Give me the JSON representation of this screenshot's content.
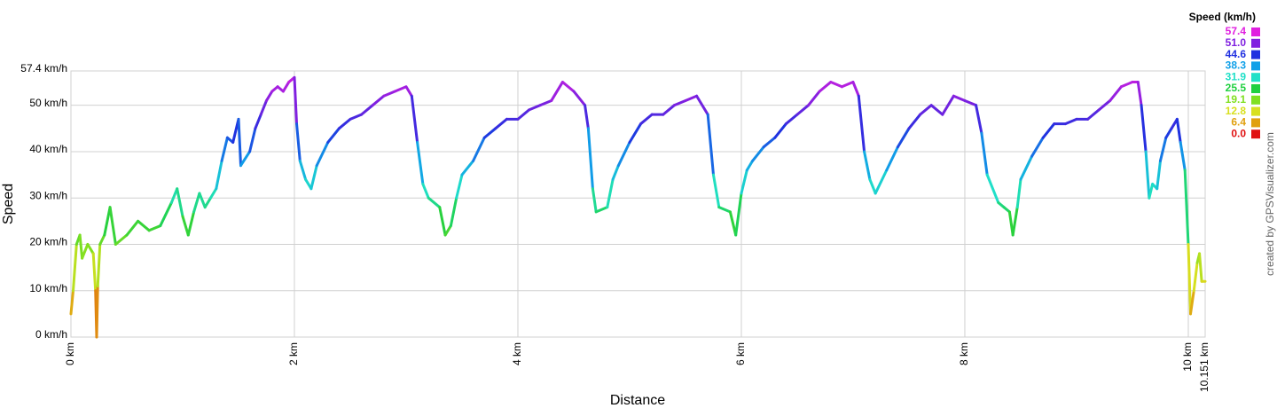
{
  "chart_data": {
    "type": "line",
    "y_label": "Speed",
    "x_label": "Distance",
    "credit": "created by GPSVisualizer.com",
    "legend_title": "Speed (km/h)",
    "legend": [
      {
        "value": 57.4,
        "label": "57.4",
        "color": "#e020e0"
      },
      {
        "value": 51.0,
        "label": "51.0",
        "color": "#8020e0"
      },
      {
        "value": 44.6,
        "label": "44.6",
        "color": "#2030e0"
      },
      {
        "value": 38.3,
        "label": "38.3",
        "color": "#10a0e8"
      },
      {
        "value": 31.9,
        "label": "31.9",
        "color": "#20e0c8"
      },
      {
        "value": 25.5,
        "label": "25.5",
        "color": "#20d040"
      },
      {
        "value": 19.1,
        "label": "19.1",
        "color": "#80e020"
      },
      {
        "value": 12.8,
        "label": "12.8",
        "color": "#d8e020"
      },
      {
        "value": 6.4,
        "label": "6.4",
        "color": "#e0a010"
      },
      {
        "value": 0.0,
        "label": "0.0",
        "color": "#e01010"
      }
    ],
    "xlim": [
      0,
      10.151
    ],
    "ylim": [
      0,
      57.4
    ],
    "xticks": [
      {
        "value": 0,
        "label": "0 km"
      },
      {
        "value": 2,
        "label": "2 km"
      },
      {
        "value": 4,
        "label": "4 km"
      },
      {
        "value": 6,
        "label": "6 km"
      },
      {
        "value": 8,
        "label": "8 km"
      },
      {
        "value": 10,
        "label": "10 km"
      },
      {
        "value": 10.151,
        "label": "10.151 km"
      }
    ],
    "yticks": [
      {
        "value": 0,
        "label": "0 km/h"
      },
      {
        "value": 10,
        "label": "10 km/h"
      },
      {
        "value": 20,
        "label": "20 km/h"
      },
      {
        "value": 30,
        "label": "30 km/h"
      },
      {
        "value": 40,
        "label": "40 km/h"
      },
      {
        "value": 50,
        "label": "50 km/h"
      },
      {
        "value": 57.4,
        "label": "57.4 km/h"
      }
    ],
    "grid": true,
    "x": [
      0,
      0.02,
      0.05,
      0.08,
      0.1,
      0.15,
      0.2,
      0.22,
      0.23,
      0.24,
      0.26,
      0.3,
      0.35,
      0.4,
      0.5,
      0.6,
      0.7,
      0.8,
      0.9,
      0.95,
      1.0,
      1.05,
      1.1,
      1.15,
      1.2,
      1.25,
      1.3,
      1.35,
      1.4,
      1.45,
      1.5,
      1.52,
      1.6,
      1.65,
      1.7,
      1.75,
      1.8,
      1.85,
      1.9,
      1.95,
      2.0,
      2.02,
      2.05,
      2.1,
      2.15,
      2.2,
      2.3,
      2.4,
      2.5,
      2.6,
      2.7,
      2.8,
      2.9,
      3.0,
      3.05,
      3.1,
      3.15,
      3.2,
      3.3,
      3.35,
      3.4,
      3.45,
      3.5,
      3.6,
      3.7,
      3.8,
      3.9,
      4.0,
      4.1,
      4.2,
      4.3,
      4.4,
      4.5,
      4.6,
      4.63,
      4.67,
      4.7,
      4.8,
      4.85,
      4.9,
      5.0,
      5.1,
      5.2,
      5.3,
      5.4,
      5.5,
      5.6,
      5.7,
      5.75,
      5.8,
      5.9,
      5.95,
      6.0,
      6.05,
      6.1,
      6.2,
      6.3,
      6.4,
      6.5,
      6.6,
      6.7,
      6.8,
      6.9,
      7.0,
      7.05,
      7.1,
      7.15,
      7.2,
      7.3,
      7.4,
      7.5,
      7.6,
      7.7,
      7.8,
      7.9,
      8.0,
      8.1,
      8.15,
      8.2,
      8.3,
      8.35,
      8.4,
      8.43,
      8.47,
      8.5,
      8.6,
      8.7,
      8.8,
      8.9,
      9.0,
      9.1,
      9.2,
      9.3,
      9.4,
      9.5,
      9.55,
      9.58,
      9.62,
      9.65,
      9.68,
      9.72,
      9.75,
      9.8,
      9.85,
      9.9,
      9.93,
      9.97,
      10.0,
      10.02,
      10.05,
      10.08,
      10.1,
      10.12,
      10.151
    ],
    "values": [
      5,
      10,
      20,
      22,
      17,
      20,
      18,
      10,
      0,
      11,
      20,
      22,
      28,
      20,
      22,
      25,
      23,
      24,
      29,
      32,
      26,
      22,
      27,
      31,
      28,
      30,
      32,
      38,
      43,
      42,
      47,
      37,
      40,
      45,
      48,
      51,
      53,
      54,
      53,
      55,
      56,
      46,
      38,
      34,
      32,
      37,
      42,
      45,
      47,
      48,
      50,
      52,
      53,
      54,
      52,
      42,
      33,
      30,
      28,
      22,
      24,
      30,
      35,
      38,
      43,
      45,
      47,
      47,
      49,
      50,
      51,
      55,
      53,
      50,
      45,
      32,
      27,
      28,
      34,
      37,
      42,
      46,
      48,
      48,
      50,
      51,
      52,
      48,
      35,
      28,
      27,
      22,
      31,
      36,
      38,
      41,
      43,
      46,
      48,
      50,
      53,
      55,
      54,
      55,
      52,
      40,
      34,
      31,
      36,
      41,
      45,
      48,
      50,
      48,
      52,
      51,
      50,
      44,
      35,
      29,
      28,
      27,
      22,
      28,
      34,
      39,
      43,
      46,
      46,
      47,
      47,
      49,
      51,
      54,
      55,
      55,
      50,
      40,
      30,
      33,
      32,
      38,
      43,
      45,
      47,
      42,
      36,
      20,
      5,
      10,
      16,
      18,
      12,
      12
    ]
  }
}
